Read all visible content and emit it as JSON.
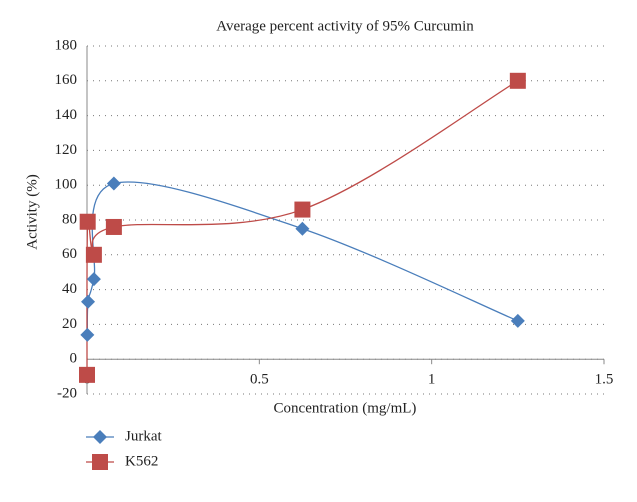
{
  "chart_data": {
    "type": "scatter",
    "title": "Average percent activity of 95% Curcumin",
    "xlabel": "Concentration (mg/mL)",
    "ylabel": "Activity (%)",
    "xlim": [
      0,
      1.5
    ],
    "xticks": [
      0,
      0.5,
      1,
      1.5
    ],
    "ylim": [
      -20,
      180
    ],
    "yticks": [
      -20,
      0,
      20,
      40,
      60,
      80,
      100,
      120,
      140,
      160,
      180
    ],
    "grid": true,
    "legend": "bottom-left",
    "series": [
      {
        "name": "Jurkat",
        "color": "#4a7ebb",
        "marker": "diamond",
        "x": [
          0.001,
          0.003,
          0.02,
          0.078,
          0.625,
          1.25
        ],
        "values": [
          14,
          33,
          46,
          101,
          75,
          22
        ]
      },
      {
        "name": "K562",
        "color": "#be4b48",
        "marker": "square",
        "x": [
          0,
          0.002,
          0.02,
          0.078,
          0.625,
          1.25
        ],
        "values": [
          -9,
          79,
          60,
          76,
          86,
          160
        ]
      }
    ]
  }
}
